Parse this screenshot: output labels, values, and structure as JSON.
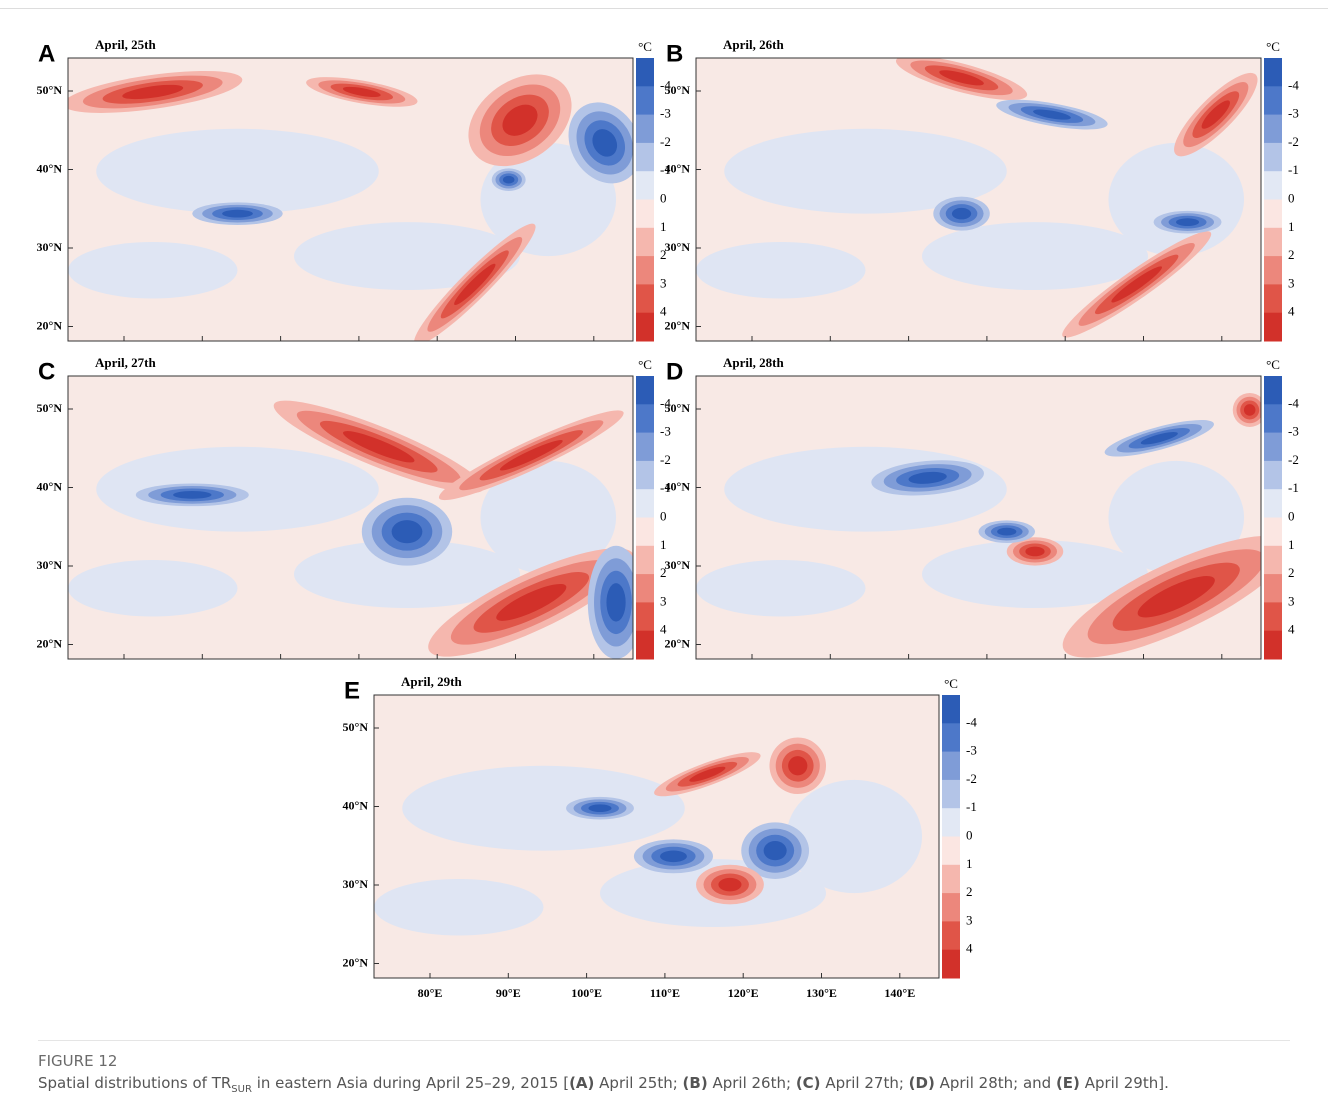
{
  "figure": {
    "lat_labels": [
      "50°N",
      "40°N",
      "30°N",
      "20°N"
    ],
    "colorbar": {
      "unit": "°C",
      "labels": [
        "-4",
        "-3",
        "-2",
        "-1",
        "0",
        "1",
        "2",
        "3",
        "4"
      ],
      "colors": [
        "#2c5cb6",
        "#4d78c9",
        "#7f9cd7",
        "#b3c4e7",
        "#e2e8f4",
        "#fbe6e2",
        "#f5b7ae",
        "#ec877c",
        "#e05548",
        "#d2312a"
      ]
    },
    "panels": [
      {
        "letter": "A",
        "date": "April, 25th"
      },
      {
        "letter": "B",
        "date": "April, 26th"
      },
      {
        "letter": "C",
        "date": "April, 27th"
      },
      {
        "letter": "D",
        "date": "April, 28th"
      },
      {
        "letter": "E",
        "date": "April, 29th",
        "lon_labels": [
          "80°E",
          "90°E",
          "100°E",
          "110°E",
          "120°E",
          "130°E",
          "140°E"
        ]
      }
    ]
  },
  "caption": {
    "label": "FIGURE 12",
    "parts": [
      "Spatial distributions of TR",
      "SUR",
      " in eastern Asia during April 25–29, 2015 [",
      "(A)",
      " April 25th; ",
      "(B)",
      " April 26th; ",
      "(C)",
      " April 27th; ",
      "(D)",
      " April 28th; and ",
      "(E)",
      " April 29th]."
    ]
  }
}
